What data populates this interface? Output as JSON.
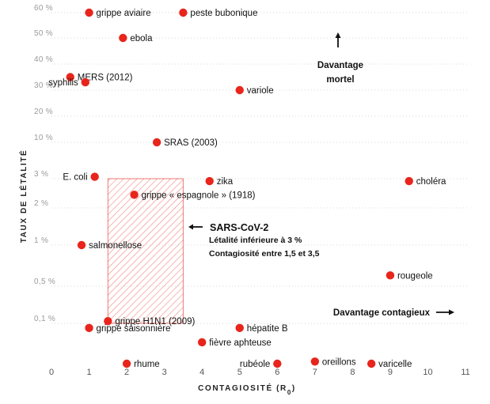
{
  "chart_data": {
    "type": "scatter",
    "xlabel": "CONTAGIOSITÉ (R0)",
    "ylabel": "TAUX DE LÉTALITÉ",
    "xlim": [
      0,
      11
    ],
    "x_ticks": [
      "0",
      "1",
      "2",
      "3",
      "4",
      "5",
      "6",
      "7",
      "8",
      "9",
      "10",
      "11"
    ],
    "y_ticks": [
      {
        "label": "60 %",
        "value": 60
      },
      {
        "label": "50 %",
        "value": 50
      },
      {
        "label": "40 %",
        "value": 40
      },
      {
        "label": "30 %",
        "value": 30
      },
      {
        "label": "20 %",
        "value": 20
      },
      {
        "label": "10 %",
        "value": 10
      },
      {
        "label": "3 %",
        "value": 3
      },
      {
        "label": "2 %",
        "value": 2
      },
      {
        "label": "1 %",
        "value": 1
      },
      {
        "label": "0,5 %",
        "value": 0.5
      },
      {
        "label": "0,1 %",
        "value": 0.1
      }
    ],
    "grid": true,
    "point_color": "#e8251c",
    "highlight_color": "#e8251c",
    "points": [
      {
        "label": "grippe aviaire",
        "x": 1.0,
        "y": 60
      },
      {
        "label": "peste bubonique",
        "x": 3.5,
        "y": 60
      },
      {
        "label": "ebola",
        "x": 1.9,
        "y": 50
      },
      {
        "label": "MERS (2012)",
        "x": 0.5,
        "y": 35
      },
      {
        "label": "syphilis",
        "x": 0.9,
        "y": 33
      },
      {
        "label": "variole",
        "x": 5.0,
        "y": 30
      },
      {
        "label": "SRAS (2003)",
        "x": 2.8,
        "y": 10
      },
      {
        "label": "E. coli",
        "x": 1.15,
        "y": 3.2
      },
      {
        "label": "zika",
        "x": 4.2,
        "y": 2.9
      },
      {
        "label": "choléra",
        "x": 9.5,
        "y": 2.9
      },
      {
        "label": "grippe « espagnole » (1918)",
        "x": 2.2,
        "y": 2.4
      },
      {
        "label": "salmonellose",
        "x": 0.8,
        "y": 1.0
      },
      {
        "label": "rougeole",
        "x": 9.0,
        "y": 0.6
      },
      {
        "label": "grippe H1N1 (2009)",
        "x": 1.5,
        "y": 0.11
      },
      {
        "label": "grippe saisonnière",
        "x": 1.0,
        "y": 0.09
      },
      {
        "label": "hépatite B",
        "x": 5.0,
        "y": 0.09
      },
      {
        "label": "fièvre aphteuse",
        "x": 4.0,
        "y": 0.065
      },
      {
        "label": "rhume",
        "x": 2.0,
        "y": 0.04
      },
      {
        "label": "rubéole",
        "x": 6.0,
        "y": 0.04
      },
      {
        "label": "oreillons",
        "x": 7.0,
        "y": 0.042
      },
      {
        "label": "varicelle",
        "x": 8.5,
        "y": 0.04
      }
    ],
    "highlight_region": {
      "x": [
        1.5,
        3.5
      ],
      "y": [
        0.1,
        3
      ]
    },
    "annotation": {
      "title": "SARS-CoV-2",
      "lines": [
        "Létalité inférieure à 3 %",
        "Contagiosité entre 1,5 et 3,5"
      ]
    },
    "callouts": {
      "mortel_line1": "Davantage",
      "mortel_line2": "mortel",
      "contagieux": "Davantage contagieux"
    }
  }
}
